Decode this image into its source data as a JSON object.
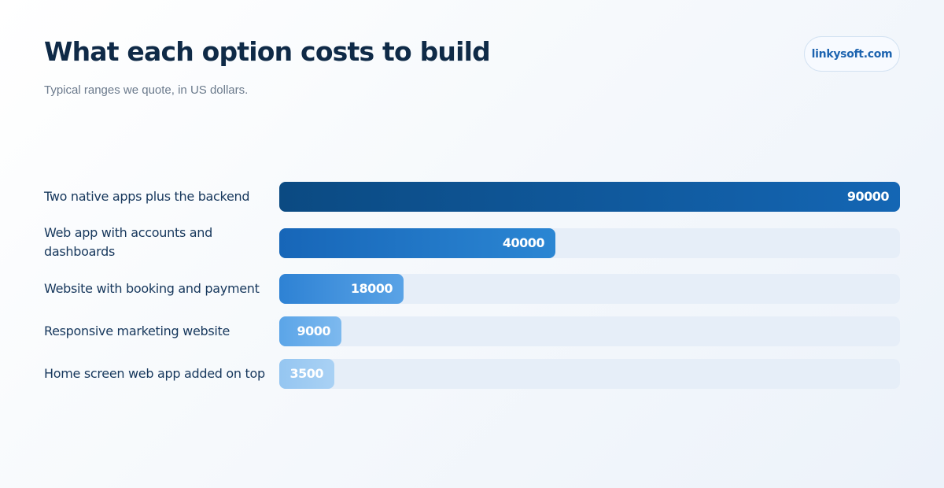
{
  "header": {
    "title": "What each option costs to build",
    "subtitle": "Typical ranges we quote, in US dollars.",
    "brand": "linkysoft.com"
  },
  "chart_data": {
    "type": "bar",
    "orientation": "horizontal",
    "title": "What each option costs to build",
    "subtitle": "Typical ranges we quote, in US dollars.",
    "categories": [
      "Two native apps plus the backend",
      "Web app with accounts and dashboards",
      "Website with booking and payment",
      "Responsive marketing website",
      "Home screen web app added on top"
    ],
    "values": [
      90000,
      40000,
      18000,
      9000,
      3500
    ],
    "xlim": [
      0,
      90000
    ],
    "grid": false,
    "colors": {
      "bar_start": [
        "#0b4a82",
        "#1766b8",
        "#2e82d4",
        "#5ba5e8",
        "#95c6f1"
      ],
      "bar_end": [
        "#1466b4",
        "#2b86d3",
        "#5aa3e6",
        "#7db9ee",
        "#a9d1f4"
      ],
      "track": "#e6eef8"
    }
  }
}
